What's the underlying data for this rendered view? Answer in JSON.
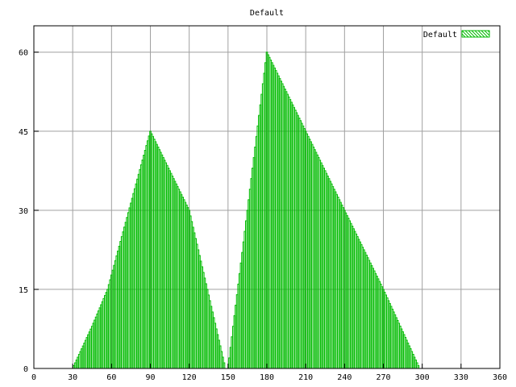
{
  "chart_data": {
    "type": "bar",
    "title": "Default",
    "xlabel": "",
    "ylabel": "",
    "xlim": [
      0,
      360
    ],
    "ylim": [
      0,
      65
    ],
    "xticks": [
      0,
      30,
      60,
      90,
      120,
      150,
      180,
      210,
      240,
      270,
      300,
      330,
      360
    ],
    "yticks": [
      0,
      15,
      30,
      45,
      60
    ],
    "grid": true,
    "legend_position": "top-right",
    "bar_style": "hatched",
    "series": [
      {
        "name": "Default",
        "color": "#00bb00",
        "points": [
          [
            30,
            0
          ],
          [
            45,
            8
          ],
          [
            57,
            15
          ],
          [
            90,
            45
          ],
          [
            120,
            30
          ],
          [
            148,
            0
          ],
          [
            150,
            0
          ],
          [
            180,
            60
          ],
          [
            210,
            45
          ],
          [
            240,
            30
          ],
          [
            270,
            15
          ],
          [
            298,
            0
          ]
        ]
      }
    ]
  }
}
